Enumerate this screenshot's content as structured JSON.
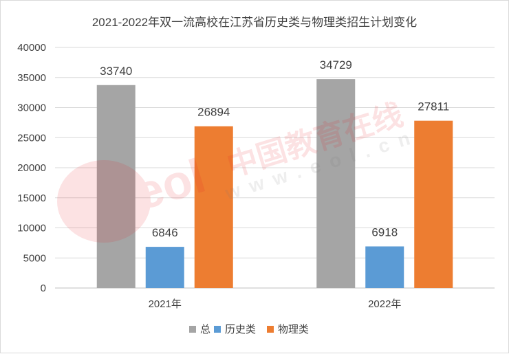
{
  "chart_data": {
    "type": "bar",
    "title": "2021-2022年双一流高校在江苏省历史类与物理类招生计划变化",
    "categories": [
      "2021年",
      "2022年"
    ],
    "series": [
      {
        "name": "总",
        "values": [
          33740,
          34729
        ],
        "color": "#a5a5a5"
      },
      {
        "name": "历史类",
        "values": [
          6846,
          6918
        ],
        "color": "#5b9bd5"
      },
      {
        "name": "物理类",
        "values": [
          26894,
          27811
        ],
        "color": "#ed7d31"
      }
    ],
    "ylim": [
      0,
      40000
    ],
    "yticks": [
      "0",
      "5000",
      "10000",
      "15000",
      "20000",
      "25000",
      "30000",
      "35000",
      "40000"
    ],
    "grid": true,
    "legend_position": "bottom",
    "data_labels": true
  },
  "watermark": {
    "text_cn": "中国教育在线",
    "text_en": "www.eol.cn",
    "logo": "eol"
  }
}
